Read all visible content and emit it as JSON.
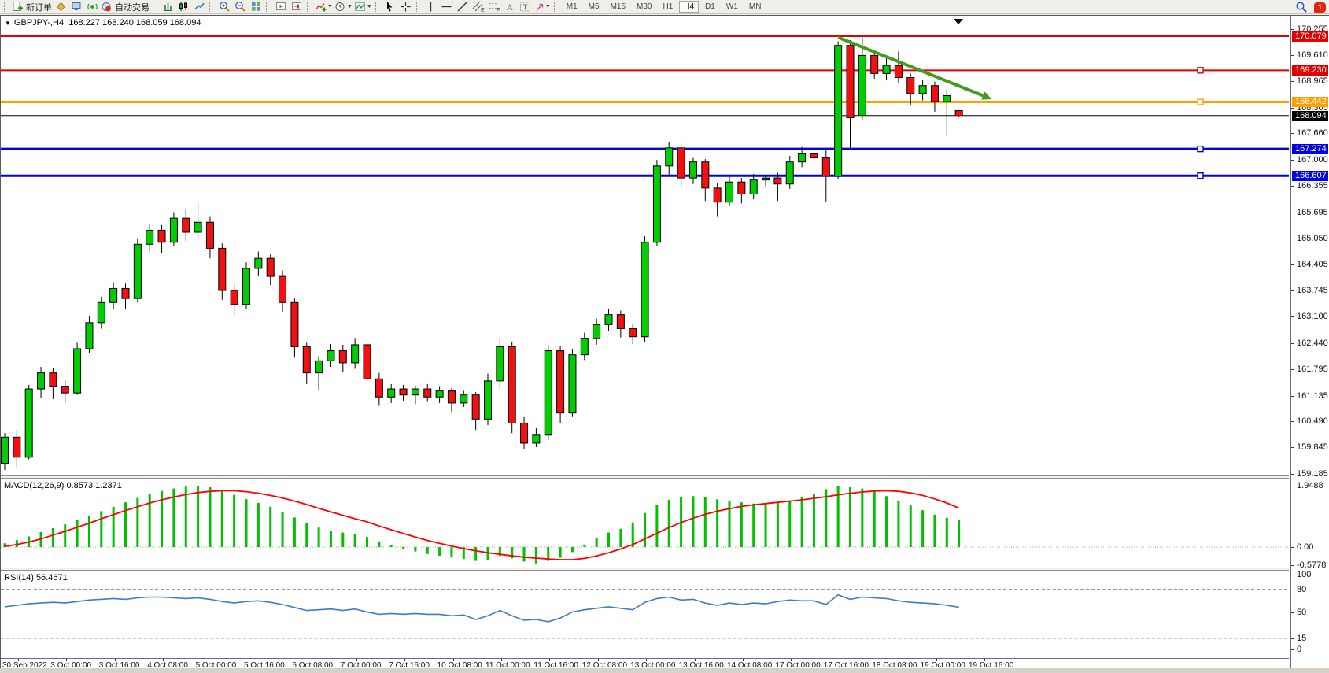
{
  "toolbar": {
    "new_order": "新订单",
    "auto_trading": "自动交易",
    "timeframes": [
      "M1",
      "M5",
      "M15",
      "M30",
      "H1",
      "H4",
      "D1",
      "W1",
      "MN"
    ],
    "active_timeframe": "H4",
    "notification_badge": "1"
  },
  "chart": {
    "title": "GBPJPY-,H4",
    "ohlc_text": "168.227 168.240 168.059 168.094",
    "macd_label": "MACD(12,26,9) 0.8573 1.2371",
    "rsi_label": "RSI(14) 56.4671"
  },
  "chart_data": {
    "type": "candlestick",
    "symbol": "GBPJPY-",
    "period": "H4",
    "current_ohlc": {
      "open": 168.227,
      "high": 168.24,
      "low": 168.059,
      "close": 168.094
    },
    "price_axis_range": [
      159.185,
      170.255
    ],
    "price_ticks": [
      "170.255",
      "169.610",
      "168.965",
      "168.305",
      "167.660",
      "167.000",
      "166.355",
      "165.695",
      "165.050",
      "164.405",
      "163.745",
      "163.100",
      "162.440",
      "161.795",
      "161.135",
      "160.490",
      "159.845",
      "159.185"
    ],
    "time_labels": [
      "30 Sep 2022",
      "3 Oct 00:00",
      "3 Oct 16:00",
      "4 Oct 08:00",
      "5 Oct 00:00",
      "5 Oct 16:00",
      "6 Oct 08:00",
      "7 Oct 00:00",
      "7 Oct 16:00",
      "10 Oct 08:00",
      "11 Oct 00:00",
      "11 Oct 16:00",
      "12 Oct 08:00",
      "13 Oct 00:00",
      "13 Oct 16:00",
      "14 Oct 08:00",
      "17 Oct 00:00",
      "17 Oct 16:00",
      "18 Oct 08:00",
      "19 Oct 00:00",
      "19 Oct 16:00"
    ],
    "bull_color": "#00CE00",
    "bear_color": "#F21010",
    "wick_color": "#000000",
    "candles": [
      [
        159.45,
        160.2,
        159.28,
        160.1
      ],
      [
        160.1,
        160.28,
        159.35,
        159.6
      ],
      [
        159.6,
        161.4,
        159.55,
        161.3
      ],
      [
        161.3,
        161.85,
        161.08,
        161.7
      ],
      [
        161.7,
        161.82,
        161.05,
        161.35
      ],
      [
        161.35,
        161.52,
        160.95,
        161.2
      ],
      [
        161.2,
        162.45,
        161.15,
        162.3
      ],
      [
        162.3,
        163.1,
        162.18,
        162.95
      ],
      [
        162.95,
        163.6,
        162.8,
        163.45
      ],
      [
        163.45,
        163.95,
        163.3,
        163.8
      ],
      [
        163.8,
        163.92,
        163.3,
        163.55
      ],
      [
        163.55,
        165.05,
        163.45,
        164.9
      ],
      [
        164.9,
        165.4,
        164.72,
        165.25
      ],
      [
        165.25,
        165.38,
        164.68,
        164.95
      ],
      [
        164.95,
        165.7,
        164.85,
        165.55
      ],
      [
        165.55,
        165.78,
        164.98,
        165.2
      ],
      [
        165.2,
        165.95,
        165.05,
        165.45
      ],
      [
        165.45,
        165.58,
        164.55,
        164.8
      ],
      [
        164.8,
        164.92,
        163.52,
        163.75
      ],
      [
        163.75,
        163.95,
        163.12,
        163.4
      ],
      [
        163.4,
        164.45,
        163.3,
        164.3
      ],
      [
        164.3,
        164.72,
        164.1,
        164.55
      ],
      [
        164.55,
        164.65,
        163.88,
        164.1
      ],
      [
        164.1,
        164.25,
        163.22,
        163.45
      ],
      [
        163.45,
        163.55,
        162.08,
        162.35
      ],
      [
        162.35,
        162.45,
        161.42,
        161.7
      ],
      [
        161.7,
        162.12,
        161.28,
        162.0
      ],
      [
        162.0,
        162.42,
        161.85,
        162.25
      ],
      [
        162.25,
        162.4,
        161.72,
        161.95
      ],
      [
        161.95,
        162.55,
        161.8,
        162.4
      ],
      [
        162.4,
        162.48,
        161.28,
        161.55
      ],
      [
        161.55,
        161.7,
        160.88,
        161.1
      ],
      [
        161.1,
        161.42,
        160.95,
        161.3
      ],
      [
        161.3,
        161.4,
        161.0,
        161.15
      ],
      [
        161.15,
        161.38,
        160.92,
        161.3
      ],
      [
        161.3,
        161.42,
        160.98,
        161.1
      ],
      [
        161.1,
        161.35,
        160.95,
        161.25
      ],
      [
        161.25,
        161.32,
        160.72,
        160.95
      ],
      [
        160.95,
        161.25,
        160.85,
        161.15
      ],
      [
        161.15,
        161.22,
        160.28,
        160.55
      ],
      [
        160.55,
        161.68,
        160.4,
        161.5
      ],
      [
        161.5,
        162.55,
        161.3,
        162.35
      ],
      [
        162.35,
        162.48,
        160.2,
        160.45
      ],
      [
        160.45,
        160.6,
        159.8,
        159.95
      ],
      [
        159.95,
        160.32,
        159.85,
        160.15
      ],
      [
        160.15,
        162.4,
        160.02,
        162.25
      ],
      [
        162.25,
        162.38,
        160.45,
        160.7
      ],
      [
        160.7,
        162.28,
        160.6,
        162.15
      ],
      [
        162.15,
        162.7,
        162.02,
        162.55
      ],
      [
        162.55,
        163.05,
        162.4,
        162.9
      ],
      [
        162.9,
        163.3,
        162.75,
        163.15
      ],
      [
        163.15,
        163.25,
        162.58,
        162.8
      ],
      [
        162.8,
        162.92,
        162.42,
        162.6
      ],
      [
        162.6,
        165.1,
        162.48,
        164.95
      ],
      [
        164.95,
        167.0,
        164.85,
        166.85
      ],
      [
        166.85,
        167.45,
        166.62,
        167.3
      ],
      [
        167.3,
        167.42,
        166.28,
        166.55
      ],
      [
        166.55,
        167.05,
        166.4,
        166.95
      ],
      [
        166.95,
        167.02,
        165.98,
        166.3
      ],
      [
        166.3,
        166.42,
        165.58,
        165.95
      ],
      [
        165.95,
        166.6,
        165.85,
        166.45
      ],
      [
        166.45,
        166.55,
        165.92,
        166.15
      ],
      [
        166.15,
        166.65,
        166.02,
        166.5
      ],
      [
        166.5,
        166.62,
        166.35,
        166.55
      ],
      [
        166.55,
        166.68,
        165.98,
        166.4
      ],
      [
        166.4,
        167.1,
        166.28,
        166.95
      ],
      [
        166.95,
        167.32,
        166.82,
        167.15
      ],
      [
        167.15,
        167.28,
        166.92,
        167.05
      ],
      [
        167.05,
        167.3,
        165.95,
        166.6
      ],
      [
        166.6,
        169.95,
        166.52,
        169.85
      ],
      [
        169.85,
        169.98,
        167.25,
        168.05
      ],
      [
        168.1,
        170.05,
        167.98,
        169.6
      ],
      [
        169.6,
        169.72,
        169.02,
        169.15
      ],
      [
        169.15,
        169.55,
        168.98,
        169.35
      ],
      [
        169.35,
        169.7,
        168.92,
        169.05
      ],
      [
        169.05,
        169.15,
        168.35,
        168.65
      ],
      [
        168.65,
        169.0,
        168.48,
        168.85
      ],
      [
        168.85,
        168.95,
        168.2,
        168.45
      ],
      [
        168.45,
        168.75,
        167.6,
        168.6
      ],
      [
        168.227,
        168.24,
        168.059,
        168.094
      ]
    ],
    "hlines": [
      {
        "price": 170.079,
        "label": "170.079",
        "color": "#E00000",
        "width": 2,
        "handle": false
      },
      {
        "price": 169.23,
        "label": "169.230",
        "color": "#E00000",
        "width": 2,
        "handle": true
      },
      {
        "price": 168.442,
        "label": "168.442",
        "color": "#FFA000",
        "width": 3,
        "handle": true
      },
      {
        "price": 167.274,
        "label": "167.274",
        "color": "#0000E0",
        "width": 3,
        "handle": true
      },
      {
        "price": 166.607,
        "label": "166.607",
        "color": "#0000E0",
        "width": 3,
        "handle": true
      }
    ],
    "bid_line": {
      "price": 168.094,
      "label": "168.094",
      "color": "#000000",
      "width": 2
    },
    "trend_arrow": {
      "from_index": 69,
      "from_price": 170.05,
      "to_index": 81,
      "to_price": 168.6,
      "color": "#449B1F",
      "width": 4
    },
    "macd": {
      "name": "MACD(12,26,9)",
      "macd_value": 0.8573,
      "signal_value": 1.2371,
      "axis_ticks": [
        {
          "v": 1.9488,
          "t": "1.9488"
        },
        {
          "v": 0,
          "t": "0.00"
        },
        {
          "v": -0.5778,
          "t": "-0.5778"
        }
      ],
      "hist_color": "#00C000",
      "signal_color": "#FF0000",
      "histogram": [
        0.12,
        0.22,
        0.34,
        0.48,
        0.6,
        0.72,
        0.86,
        1.0,
        1.14,
        1.28,
        1.42,
        1.56,
        1.68,
        1.78,
        1.86,
        1.92,
        1.95,
        1.9,
        1.8,
        1.66,
        1.52,
        1.4,
        1.28,
        1.12,
        0.94,
        0.76,
        0.62,
        0.52,
        0.46,
        0.42,
        0.32,
        0.18,
        0.06,
        -0.05,
        -0.14,
        -0.22,
        -0.28,
        -0.33,
        -0.38,
        -0.44,
        -0.4,
        -0.28,
        -0.36,
        -0.46,
        -0.52,
        -0.44,
        -0.34,
        -0.16,
        0.08,
        0.28,
        0.46,
        0.58,
        0.78,
        1.08,
        1.34,
        1.5,
        1.58,
        1.62,
        1.58,
        1.52,
        1.46,
        1.42,
        1.38,
        1.36,
        1.4,
        1.48,
        1.58,
        1.7,
        1.84,
        1.93,
        1.9,
        1.86,
        1.78,
        1.62,
        1.47,
        1.32,
        1.17,
        1.03,
        0.93,
        0.8573
      ],
      "signal": [
        0.02,
        0.08,
        0.16,
        0.26,
        0.38,
        0.5,
        0.63,
        0.76,
        0.9,
        1.03,
        1.16,
        1.28,
        1.4,
        1.5,
        1.59,
        1.67,
        1.73,
        1.77,
        1.79,
        1.79,
        1.76,
        1.71,
        1.64,
        1.56,
        1.46,
        1.35,
        1.23,
        1.12,
        1.01,
        0.9,
        0.8,
        0.67,
        0.55,
        0.43,
        0.32,
        0.21,
        0.12,
        0.03,
        -0.05,
        -0.12,
        -0.18,
        -0.23,
        -0.28,
        -0.32,
        -0.35,
        -0.38,
        -0.4,
        -0.4,
        -0.36,
        -0.28,
        -0.18,
        -0.06,
        0.08,
        0.26,
        0.44,
        0.62,
        0.78,
        0.92,
        1.04,
        1.14,
        1.22,
        1.29,
        1.34,
        1.38,
        1.42,
        1.46,
        1.5,
        1.55,
        1.6,
        1.66,
        1.71,
        1.75,
        1.78,
        1.79,
        1.77,
        1.72,
        1.64,
        1.53,
        1.4,
        1.2371
      ]
    },
    "rsi": {
      "name": "RSI(14)",
      "value": 56.4671,
      "axis_ticks": [
        {
          "v": 100,
          "t": "100"
        },
        {
          "v": 80,
          "t": "80"
        },
        {
          "v": 50,
          "t": "50"
        },
        {
          "v": 15,
          "t": "15"
        },
        {
          "v": 0,
          "t": "0"
        }
      ],
      "levels": [
        80,
        50,
        15
      ],
      "line_color": "#3E7BC0",
      "values": [
        57,
        59,
        61,
        62,
        63,
        62,
        64,
        66,
        67,
        68,
        67,
        69,
        70,
        70,
        69,
        68,
        69,
        67,
        64,
        62,
        64,
        65,
        63,
        60,
        56,
        52,
        53,
        54,
        52,
        54,
        50,
        47,
        48,
        47,
        48,
        47,
        47,
        45,
        46,
        40,
        45,
        52,
        45,
        39,
        40,
        37,
        42,
        50,
        53,
        55,
        57,
        55,
        53,
        63,
        68,
        70,
        66,
        67,
        62,
        59,
        62,
        60,
        62,
        61,
        64,
        66,
        65,
        65,
        60,
        73,
        67,
        70,
        69,
        68,
        65,
        63,
        62,
        61,
        59,
        56.4671
      ]
    }
  }
}
